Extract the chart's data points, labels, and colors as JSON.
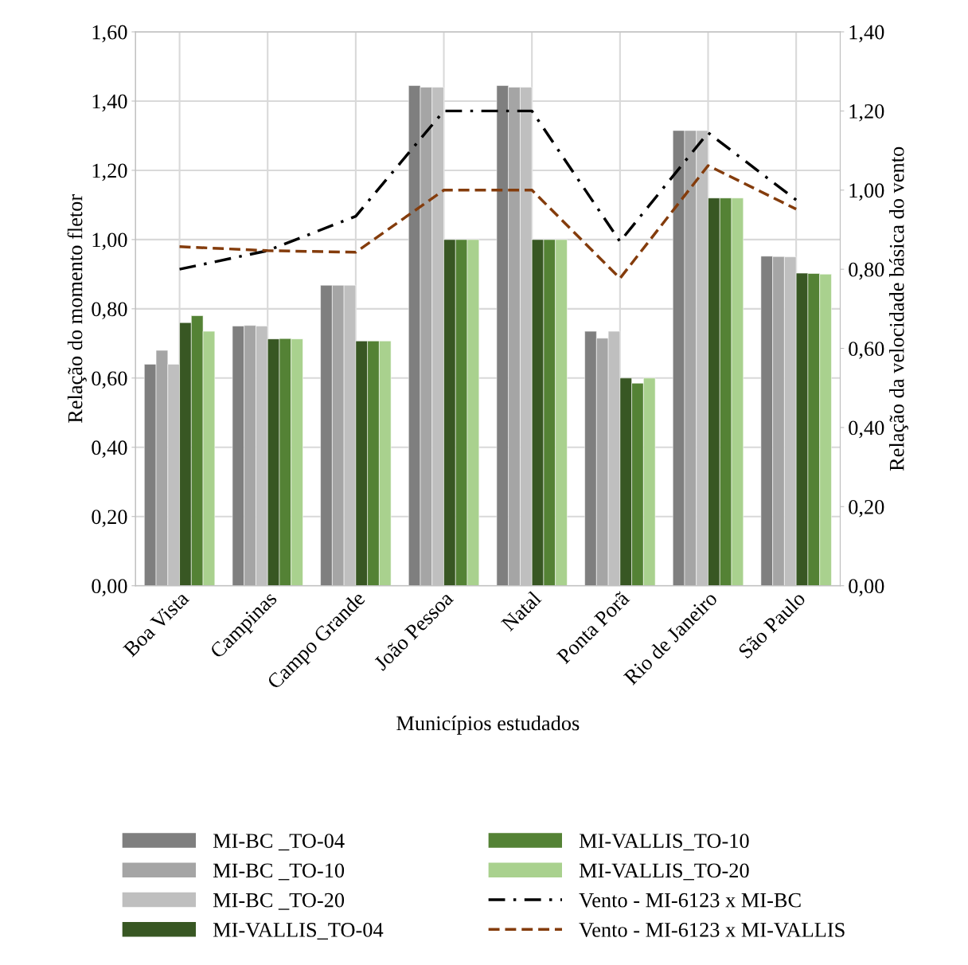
{
  "chart_data": {
    "type": "bar",
    "xlabel": "Municípios estudados",
    "ylabel": "Relação do momento fletor",
    "y2label": "Relação da velocidade básica do vento",
    "categories": [
      "Boa Vista",
      "Campinas",
      "Campo Grande",
      "João Pessoa",
      "Natal",
      "Ponta Porã",
      "Rio de Janeiro",
      "São Paulo"
    ],
    "series": [
      {
        "name": "MI-BC _TO-04",
        "color": "#7f7f7f",
        "values": [
          0.64,
          0.75,
          0.868,
          1.445,
          1.445,
          0.735,
          1.315,
          0.952
        ]
      },
      {
        "name": "MI-BC _TO-10",
        "color": "#a5a5a5",
        "values": [
          0.68,
          0.752,
          0.868,
          1.44,
          1.44,
          0.715,
          1.315,
          0.951
        ]
      },
      {
        "name": "MI-BC _TO-20",
        "color": "#bfbfbf",
        "values": [
          0.64,
          0.75,
          0.868,
          1.44,
          1.44,
          0.735,
          1.315,
          0.95
        ]
      },
      {
        "name": "MI-VALLIS_TO-04",
        "color": "#385723",
        "values": [
          0.76,
          0.713,
          0.707,
          1.0,
          1.0,
          0.6,
          1.12,
          0.903
        ]
      },
      {
        "name": "MI-VALLIS_TO-10",
        "color": "#548235",
        "values": [
          0.78,
          0.714,
          0.707,
          1.0,
          1.0,
          0.585,
          1.12,
          0.902
        ]
      },
      {
        "name": "MI-VALLIS_TO-20",
        "color": "#a9d18e",
        "values": [
          0.735,
          0.713,
          0.707,
          1.0,
          1.0,
          0.6,
          1.12,
          0.9
        ]
      },
      {
        "name": "Vento - MI-6123 x MI-BC",
        "type": "line",
        "axis": "y2",
        "line_style": "dashdot",
        "color": "#000000",
        "values": [
          0.8,
          0.847,
          0.934,
          1.2,
          1.2,
          0.87,
          1.145,
          0.975
        ]
      },
      {
        "name": "Vento - MI-6123 x MI-VALLIS",
        "type": "line",
        "axis": "y2",
        "line_style": "dashed",
        "color": "#843c0c",
        "values": [
          0.857,
          0.847,
          0.843,
          1.0,
          1.0,
          0.777,
          1.062,
          0.952
        ]
      }
    ],
    "ylim": [
      0,
      1.6
    ],
    "yticks": [
      {
        "value": 0,
        "label": "0,00"
      },
      {
        "value": 0.2,
        "label": "0,20"
      },
      {
        "value": 0.4,
        "label": "0,40"
      },
      {
        "value": 0.6,
        "label": "0,60"
      },
      {
        "value": 0.8,
        "label": "0,80"
      },
      {
        "value": 1.0,
        "label": "1,00"
      },
      {
        "value": 1.2,
        "label": "1,20"
      },
      {
        "value": 1.4,
        "label": "1,40"
      },
      {
        "value": 1.6,
        "label": "1,60"
      }
    ],
    "y2lim": [
      0,
      1.4
    ],
    "y2ticks": [
      {
        "value": 0,
        "label": "0,00"
      },
      {
        "value": 0.2,
        "label": "0,20"
      },
      {
        "value": 0.4,
        "label": "0,40"
      },
      {
        "value": 0.6,
        "label": "0,60"
      },
      {
        "value": 0.8,
        "label": "0,80"
      },
      {
        "value": 1.0,
        "label": "1,00"
      },
      {
        "value": 1.2,
        "label": "1,20"
      },
      {
        "value": 1.4,
        "label": "1,40"
      }
    ],
    "grid": true,
    "legend": "bottom"
  }
}
